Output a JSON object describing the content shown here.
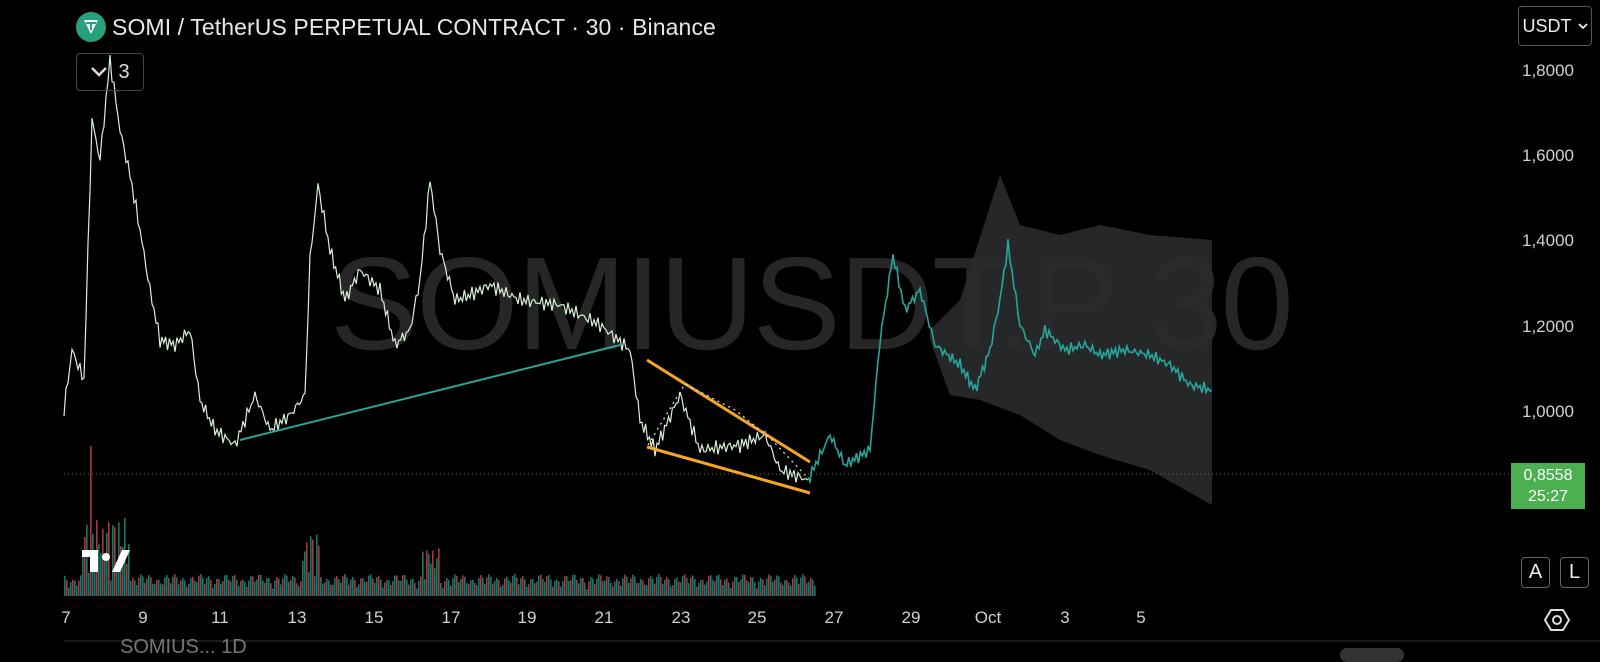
{
  "header": {
    "title": "SOMI / TetherUS PERPETUAL CONTRACT · 30 · Binance",
    "indicator_count": "3",
    "currency": "USDT"
  },
  "watermark": "SOMIUSDT.P 30",
  "price_axis": [
    "1,8000",
    "1,6000",
    "1,4000",
    "1,2000",
    "1,0000"
  ],
  "current_price": {
    "price": "0,8558",
    "countdown": "25:27"
  },
  "time_axis": [
    "7",
    "9",
    "11",
    "13",
    "15",
    "17",
    "19",
    "21",
    "23",
    "25",
    "27",
    "29",
    "Oct",
    "3",
    "5"
  ],
  "buttons": {
    "auto": "A",
    "log": "L"
  },
  "bottom_symbol": "SOMIUS... 1D",
  "colors": {
    "up": "#26a69a",
    "down": "#ef5350",
    "pattern": "#f5a623",
    "price_tag": "#4caf50",
    "trend_line": "#26a69a"
  }
}
